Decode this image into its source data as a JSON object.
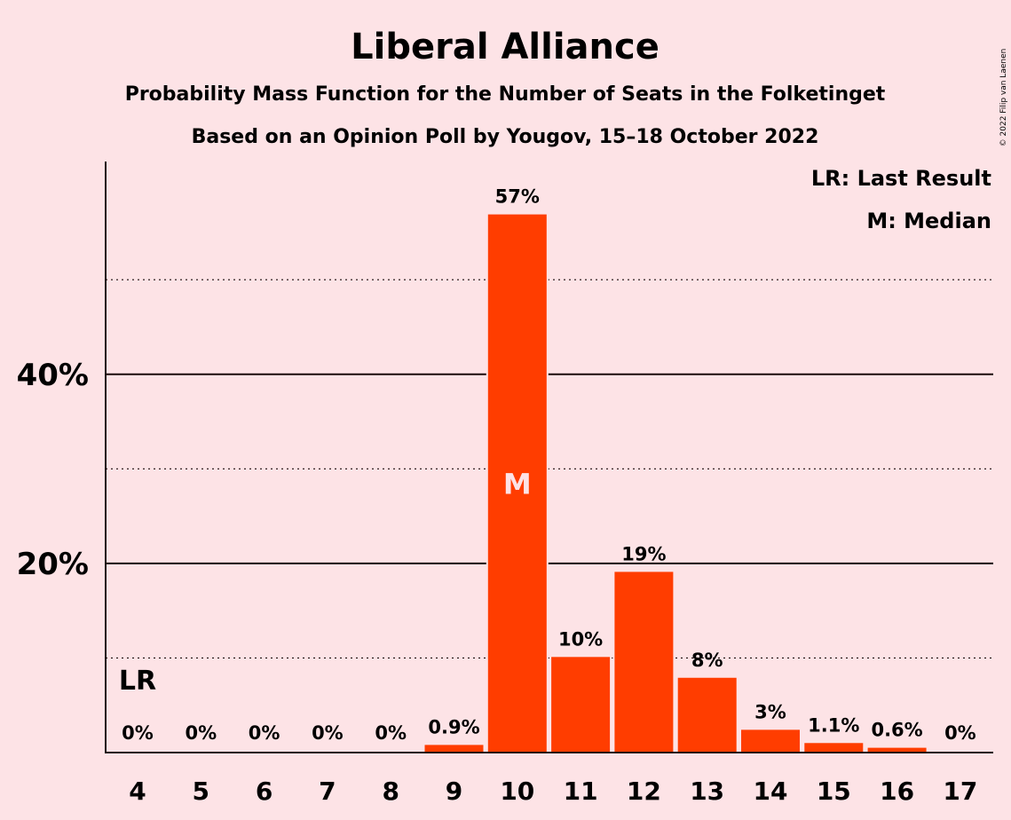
{
  "chart_data": {
    "type": "bar",
    "title": "Liberal Alliance",
    "subtitle": "Probability Mass Function for the Number of Seats in the Folketinget",
    "subtitle2": "Based on an Opinion Poll by Yougov, 15–18 October 2022",
    "copyright": "© 2022 Filip van Laenen",
    "categories": [
      "4",
      "5",
      "6",
      "7",
      "8",
      "9",
      "10",
      "11",
      "12",
      "13",
      "14",
      "15",
      "16",
      "17"
    ],
    "values": [
      0,
      0,
      0,
      0,
      0,
      0.9,
      57,
      10.2,
      19.2,
      8,
      2.5,
      1.1,
      0.6,
      0
    ],
    "value_labels": [
      "0%",
      "0%",
      "0%",
      "0%",
      "0%",
      "0.9%",
      "57%",
      "10%",
      "19%",
      "8%",
      "3%",
      "1.1%",
      "0.6%",
      "0%"
    ],
    "y_ticks": [
      {
        "value": 20,
        "label": "20%"
      },
      {
        "value": 40,
        "label": "40%"
      }
    ],
    "y_minor_gridlines": [
      10,
      30,
      50
    ],
    "ylim": [
      0,
      62.5
    ],
    "bar_color": "#ff3d00",
    "last_result": {
      "category": "4",
      "label": "LR"
    },
    "median": {
      "category": "10",
      "label": "M"
    },
    "legend": [
      "LR: Last Result",
      "M: Median"
    ],
    "legend_position": "top-right",
    "grid": true
  }
}
